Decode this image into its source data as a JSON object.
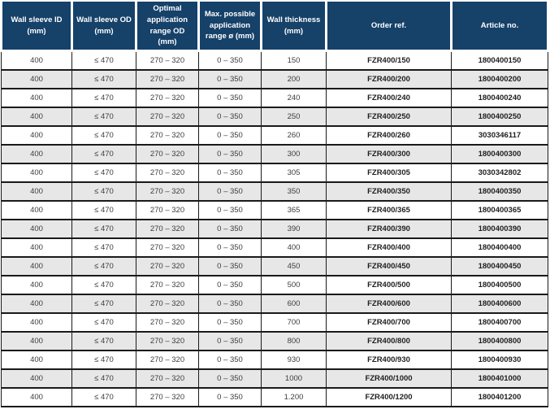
{
  "colors": {
    "header_bg": "#164169",
    "header_text": "#ffffff",
    "row_odd_bg": "#ffffff",
    "row_even_bg": "#e7e7e7",
    "grid_border": "#1a1a1a",
    "body_text": "#3d3d3d",
    "strong_text": "#1f1f1f"
  },
  "table": {
    "columns": [
      {
        "key": "id",
        "label": "Wall sleeve ID (mm)"
      },
      {
        "key": "od",
        "label": "Wall sleeve OD (mm)"
      },
      {
        "key": "optimal",
        "label": "Optimal application range OD (mm)"
      },
      {
        "key": "max",
        "label": "Max. possible application range ø (mm)"
      },
      {
        "key": "thickness",
        "label": "Wall thickness (mm)"
      },
      {
        "key": "order",
        "label": "Order ref."
      },
      {
        "key": "article",
        "label": "Article no."
      }
    ],
    "rows": [
      {
        "id": "400",
        "od": "≤ 470",
        "optimal": "270 – 320",
        "max": "0 – 350",
        "thickness": "150",
        "order": "FZR400/150",
        "article": "1800400150"
      },
      {
        "id": "400",
        "od": "≤ 470",
        "optimal": "270 – 320",
        "max": "0 – 350",
        "thickness": "200",
        "order": "FZR400/200",
        "article": "1800400200"
      },
      {
        "id": "400",
        "od": "≤ 470",
        "optimal": "270 – 320",
        "max": "0 – 350",
        "thickness": "240",
        "order": "FZR400/240",
        "article": "1800400240"
      },
      {
        "id": "400",
        "od": "≤ 470",
        "optimal": "270 – 320",
        "max": "0 – 350",
        "thickness": "250",
        "order": "FZR400/250",
        "article": "1800400250"
      },
      {
        "id": "400",
        "od": "≤ 470",
        "optimal": "270 – 320",
        "max": "0 – 350",
        "thickness": "260",
        "order": "FZR400/260",
        "article": "3030346117"
      },
      {
        "id": "400",
        "od": "≤ 470",
        "optimal": "270 – 320",
        "max": "0 – 350",
        "thickness": "300",
        "order": "FZR400/300",
        "article": "1800400300"
      },
      {
        "id": "400",
        "od": "≤ 470",
        "optimal": "270 – 320",
        "max": "0 – 350",
        "thickness": "305",
        "order": "FZR400/305",
        "article": "3030342802"
      },
      {
        "id": "400",
        "od": "≤ 470",
        "optimal": "270 – 320",
        "max": "0 – 350",
        "thickness": "350",
        "order": "FZR400/350",
        "article": "1800400350"
      },
      {
        "id": "400",
        "od": "≤ 470",
        "optimal": "270 – 320",
        "max": "0 – 350",
        "thickness": "365",
        "order": "FZR400/365",
        "article": "1800400365"
      },
      {
        "id": "400",
        "od": "≤ 470",
        "optimal": "270 – 320",
        "max": "0 – 350",
        "thickness": "390",
        "order": "FZR400/390",
        "article": "1800400390"
      },
      {
        "id": "400",
        "od": "≤ 470",
        "optimal": "270 – 320",
        "max": "0 – 350",
        "thickness": "400",
        "order": "FZR400/400",
        "article": "1800400400"
      },
      {
        "id": "400",
        "od": "≤ 470",
        "optimal": "270 – 320",
        "max": "0 – 350",
        "thickness": "450",
        "order": "FZR400/450",
        "article": "1800400450"
      },
      {
        "id": "400",
        "od": "≤ 470",
        "optimal": "270 – 320",
        "max": "0 – 350",
        "thickness": "500",
        "order": "FZR400/500",
        "article": "1800400500"
      },
      {
        "id": "400",
        "od": "≤ 470",
        "optimal": "270 – 320",
        "max": "0 – 350",
        "thickness": "600",
        "order": "FZR400/600",
        "article": "1800400600"
      },
      {
        "id": "400",
        "od": "≤ 470",
        "optimal": "270 – 320",
        "max": "0 – 350",
        "thickness": "700",
        "order": "FZR400/700",
        "article": "1800400700"
      },
      {
        "id": "400",
        "od": "≤ 470",
        "optimal": "270 – 320",
        "max": "0 – 350",
        "thickness": "800",
        "order": "FZR400/800",
        "article": "1800400800"
      },
      {
        "id": "400",
        "od": "≤ 470",
        "optimal": "270 – 320",
        "max": "0 – 350",
        "thickness": "930",
        "order": "FZR400/930",
        "article": "1800400930"
      },
      {
        "id": "400",
        "od": "≤ 470",
        "optimal": "270 – 320",
        "max": "0 – 350",
        "thickness": "1000",
        "order": "FZR400/1000",
        "article": "1800401000"
      },
      {
        "id": "400",
        "od": "≤ 470",
        "optimal": "270 – 320",
        "max": "0 – 350",
        "thickness": "1.200",
        "order": "FZR400/1200",
        "article": "1800401200"
      }
    ]
  }
}
